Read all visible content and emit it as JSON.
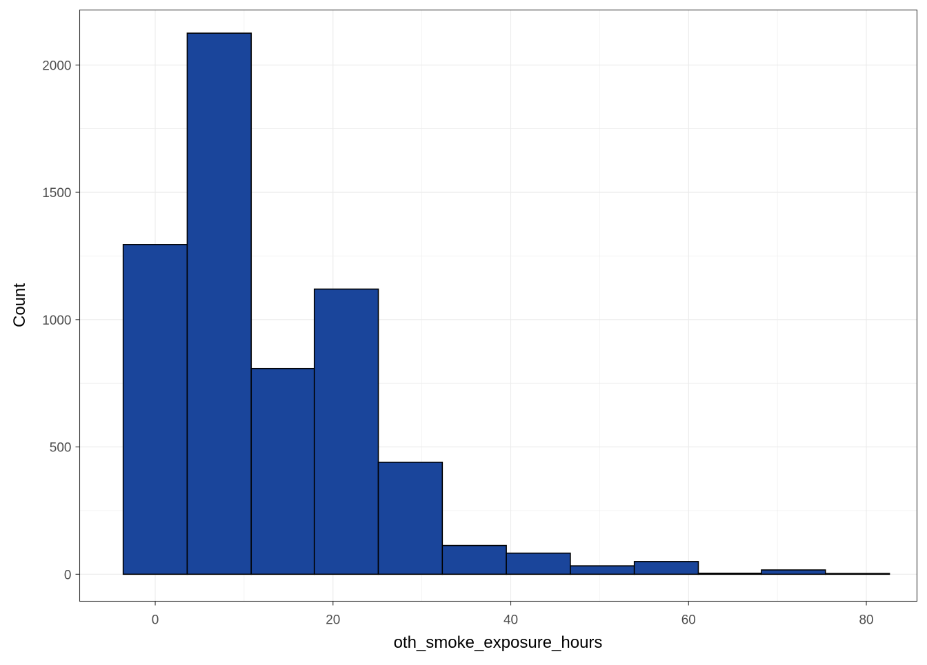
{
  "chart_data": {
    "type": "bar",
    "subtype": "histogram",
    "xlabel": "oth_smoke_exposure_hours",
    "ylabel": "Count",
    "xlim": [
      -8.5,
      85.7
    ],
    "ylim": [
      -106,
      2216
    ],
    "x_ticks": [
      0,
      20,
      40,
      60,
      80
    ],
    "x_minor": [
      10,
      30,
      50,
      70
    ],
    "y_ticks": [
      0,
      500,
      1000,
      1500,
      2000
    ],
    "y_minor": [
      250,
      750,
      1250,
      1750
    ],
    "bins": [
      {
        "x0": -3.6,
        "x1": 3.6,
        "count": 1295
      },
      {
        "x0": 3.6,
        "x1": 10.8,
        "count": 2125
      },
      {
        "x0": 10.8,
        "x1": 17.9,
        "count": 808
      },
      {
        "x0": 17.9,
        "x1": 25.1,
        "count": 1120
      },
      {
        "x0": 25.1,
        "x1": 32.3,
        "count": 440
      },
      {
        "x0": 32.3,
        "x1": 39.5,
        "count": 113
      },
      {
        "x0": 39.5,
        "x1": 46.7,
        "count": 83
      },
      {
        "x0": 46.7,
        "x1": 53.9,
        "count": 33
      },
      {
        "x0": 53.9,
        "x1": 61.1,
        "count": 50
      },
      {
        "x0": 61.1,
        "x1": 68.2,
        "count": 4
      },
      {
        "x0": 68.2,
        "x1": 75.4,
        "count": 17
      },
      {
        "x0": 75.4,
        "x1": 82.6,
        "count": 3
      }
    ],
    "bar_fill": "#1a459b",
    "bar_outline": "#000000",
    "grid": true,
    "grid_color": "#ebebeb",
    "panel_border": "#333333",
    "legend": "none"
  }
}
